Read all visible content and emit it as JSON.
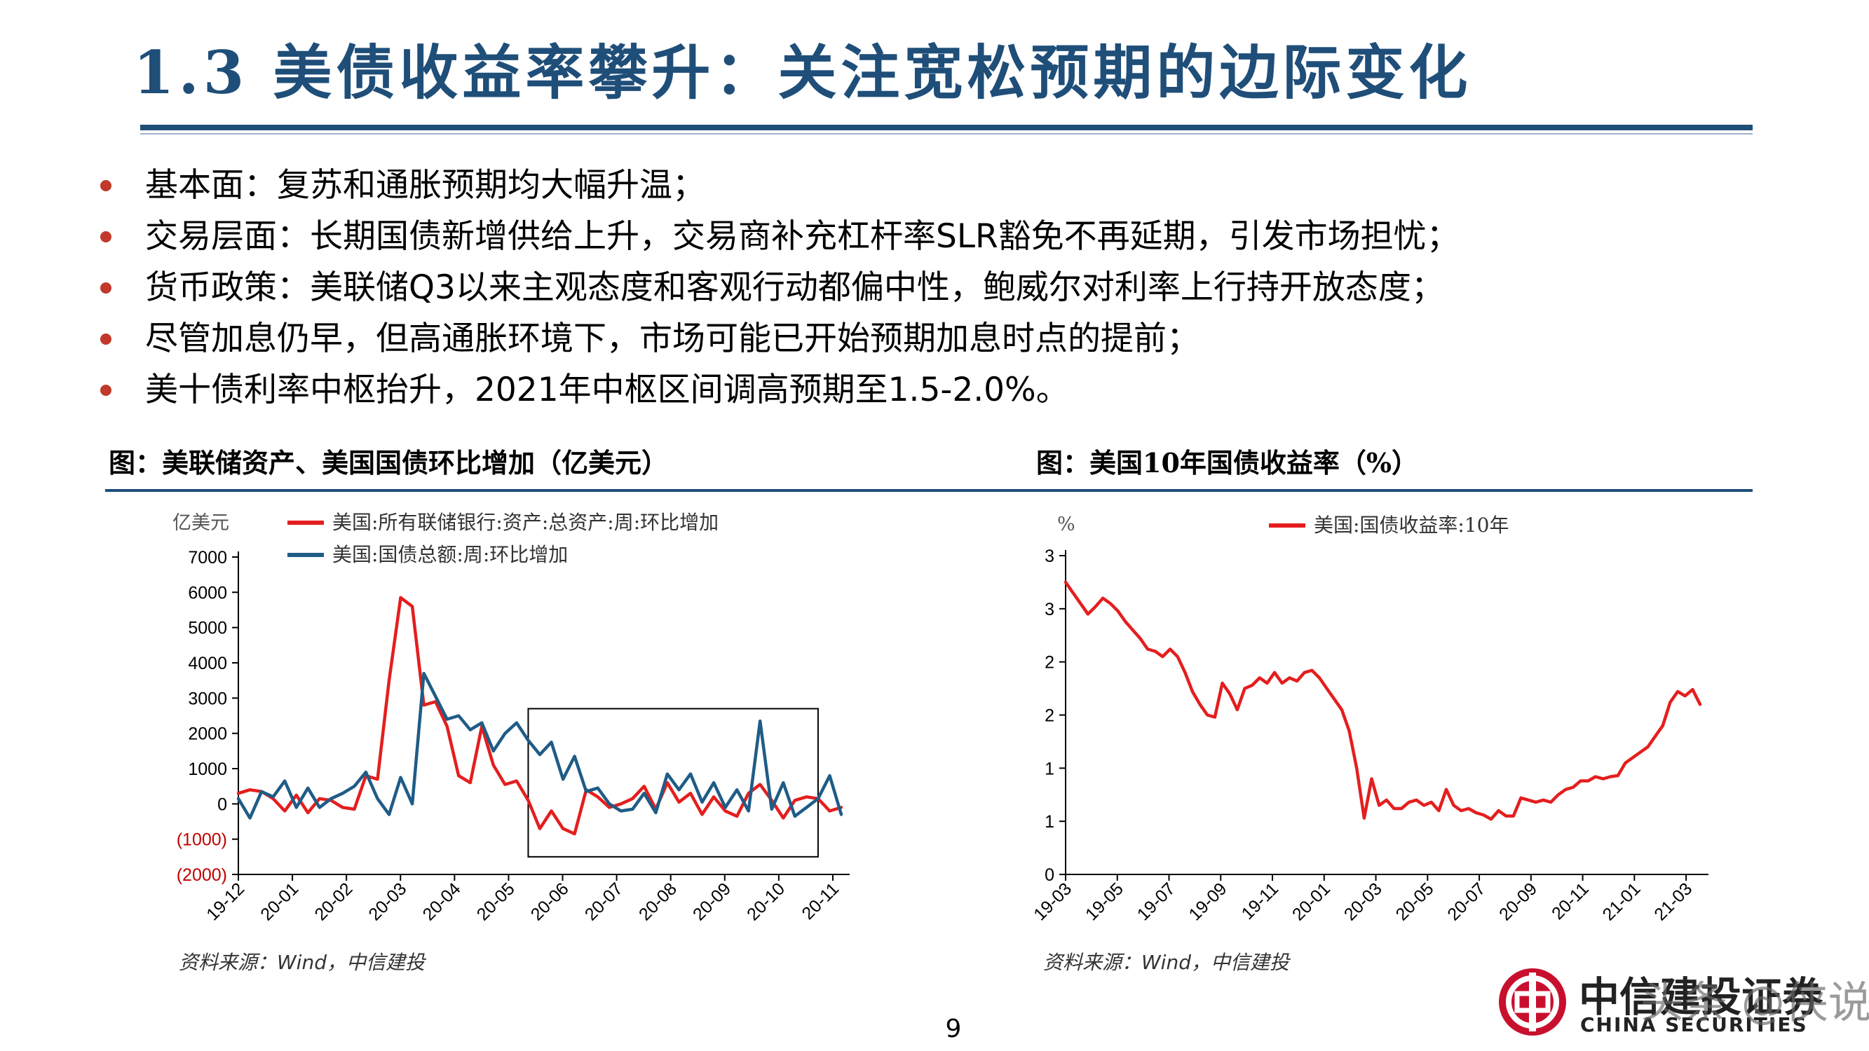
{
  "title": "1.3 美债收益率攀升：关注宽松预期的边际变化",
  "bullets": [
    "基本面：复苏和通胀预期均大幅升温；",
    "交易层面：长期国债新增供给上升，交易商补充杠杆率SLR豁免不再延期，引发市场担忧；",
    "货币政策：美联储Q3以来主观态度和客观行动都偏中性，鲍威尔对利率上行持开放态度；",
    "尽管加息仍早，但高通胀环境下，市场可能已开始预期加息时点的提前；",
    "美十债利率中枢抬升，2021年中枢区间调高预期至1.5-2.0%。"
  ],
  "colors": {
    "accent": "#1F4E79",
    "red": "#E41E1E",
    "blue": "#1F5C87",
    "bullet": "#C0392B"
  },
  "page_number": "9",
  "logo": {
    "cn": "中信建投证券",
    "en": "CHINA SECURITIES"
  },
  "watermark": "头条 @侠说",
  "chart_data": [
    {
      "type": "line",
      "title": "图：美联储资产、美国国债环比增加（亿美元）",
      "unit_label": "亿美元",
      "source": "资料来源：Wind，中信建投",
      "y_ticks": [
        "7000",
        "6000",
        "5000",
        "4000",
        "3000",
        "2000",
        "1000",
        "0",
        "(1000)",
        "(2000)"
      ],
      "y_tick_values": [
        7000,
        6000,
        5000,
        4000,
        3000,
        2000,
        1000,
        0,
        -1000,
        -2000
      ],
      "ylim": [
        -2000,
        7000
      ],
      "x_ticks": [
        "19-12",
        "20-01",
        "20-02",
        "20-03",
        "20-04",
        "20-05",
        "20-06",
        "20-07",
        "20-08",
        "20-09",
        "20-10",
        "20-11"
      ],
      "x_count": 53,
      "highlight_box_index_range": [
        25,
        50
      ],
      "highlight_box_value_range": [
        -1500,
        2700
      ],
      "series": [
        {
          "name": "美国:所有联储银行:资产:总资产:周:环比增加",
          "color": "#E41E1E",
          "values": [
            300,
            400,
            350,
            150,
            -200,
            250,
            -250,
            150,
            100,
            -100,
            -150,
            800,
            700,
            3500,
            5850,
            5600,
            2800,
            2900,
            2200,
            800,
            600,
            2200,
            1100,
            550,
            650,
            100,
            -700,
            -200,
            -700,
            -850,
            400,
            200,
            -100,
            0,
            150,
            500,
            -150,
            600,
            50,
            300,
            -300,
            200,
            -200,
            -350,
            300,
            550,
            100,
            -400,
            100,
            200,
            150,
            -200,
            -100
          ]
        },
        {
          "name": "美国:国债总额:周:环比增加",
          "color": "#1F5C87",
          "values": [
            150,
            -400,
            350,
            200,
            650,
            -100,
            450,
            -100,
            150,
            300,
            500,
            900,
            150,
            -300,
            750,
            0,
            3700,
            3050,
            2400,
            2500,
            2100,
            2300,
            1500,
            2000,
            2300,
            1800,
            1400,
            1750,
            700,
            1350,
            350,
            450,
            0,
            -200,
            -150,
            300,
            -250,
            850,
            400,
            850,
            50,
            600,
            -100,
            400,
            -200,
            2350,
            -150,
            600,
            -350,
            -100,
            150,
            800,
            -300
          ]
        }
      ]
    },
    {
      "type": "line",
      "title": "图：美国10年国债收益率（%）",
      "unit_label": "%",
      "source": "资料来源：Wind，中信建投",
      "y_ticks": [
        "3",
        "3",
        "2",
        "2",
        "1",
        "1",
        "0"
      ],
      "y_tick_values": [
        3.0,
        2.5,
        2.0,
        1.5,
        1.0,
        0.5,
        0.0
      ],
      "ylim": [
        0,
        3.0
      ],
      "x_ticks": [
        "19-03",
        "19-05",
        "19-07",
        "19-09",
        "19-11",
        "20-01",
        "20-03",
        "20-05",
        "20-07",
        "20-09",
        "20-11",
        "21-01",
        "21-03"
      ],
      "x_count": 86,
      "series": [
        {
          "name": "美国:国债收益率:10年",
          "color": "#E41E1E",
          "values": [
            2.75,
            2.65,
            2.55,
            2.45,
            2.52,
            2.6,
            2.55,
            2.48,
            2.38,
            2.3,
            2.22,
            2.12,
            2.1,
            2.05,
            2.12,
            2.05,
            1.9,
            1.72,
            1.6,
            1.5,
            1.48,
            1.8,
            1.7,
            1.55,
            1.75,
            1.78,
            1.85,
            1.8,
            1.9,
            1.8,
            1.85,
            1.82,
            1.9,
            1.92,
            1.85,
            1.75,
            1.65,
            1.55,
            1.35,
            1.0,
            0.53,
            0.9,
            0.65,
            0.7,
            0.62,
            0.62,
            0.68,
            0.7,
            0.65,
            0.68,
            0.6,
            0.8,
            0.65,
            0.6,
            0.62,
            0.58,
            0.56,
            0.52,
            0.6,
            0.55,
            0.55,
            0.72,
            0.7,
            0.68,
            0.7,
            0.68,
            0.75,
            0.8,
            0.82,
            0.88,
            0.88,
            0.92,
            0.9,
            0.92,
            0.93,
            1.05,
            1.1,
            1.15,
            1.2,
            1.3,
            1.4,
            1.62,
            1.72,
            1.68,
            1.74,
            1.6
          ]
        }
      ]
    }
  ]
}
